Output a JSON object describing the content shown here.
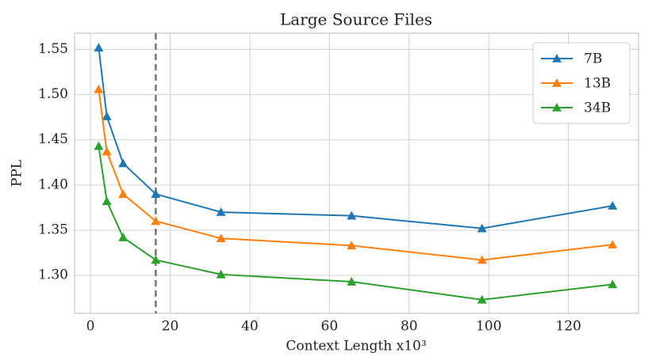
{
  "chart_data": {
    "type": "line",
    "title": "Large Source Files",
    "x_label": "Context Length x10³",
    "y_label": "PPL",
    "x": [
      2.048,
      4.096,
      8.192,
      16.384,
      32.768,
      65.536,
      98.304,
      131.072
    ],
    "series": [
      {
        "name": "7B",
        "color": "#1f77b4",
        "values": [
          1.552,
          1.476,
          1.424,
          1.39,
          1.37,
          1.366,
          1.352,
          1.377
        ]
      },
      {
        "name": "13B",
        "color": "#ff7f0e",
        "values": [
          1.506,
          1.437,
          1.39,
          1.36,
          1.341,
          1.333,
          1.317,
          1.334
        ]
      },
      {
        "name": "34B",
        "color": "#2ca02c",
        "values": [
          1.443,
          1.382,
          1.342,
          1.317,
          1.301,
          1.293,
          1.273,
          1.29
        ]
      }
    ],
    "vline": 16.384,
    "xlim": [
      -4,
      137.6
    ],
    "xticks": [
      0,
      20,
      40,
      60,
      80,
      100,
      120
    ],
    "ylim": [
      1.258,
      1.568
    ],
    "yticks": [
      {
        "value": 1.3,
        "label": "1.30"
      },
      1.35,
      {
        "value": 1.4,
        "label": "1.40"
      },
      1.45,
      {
        "value": 1.5,
        "label": "1.50"
      },
      1.55
    ],
    "grid": true,
    "legend": "upper right"
  }
}
